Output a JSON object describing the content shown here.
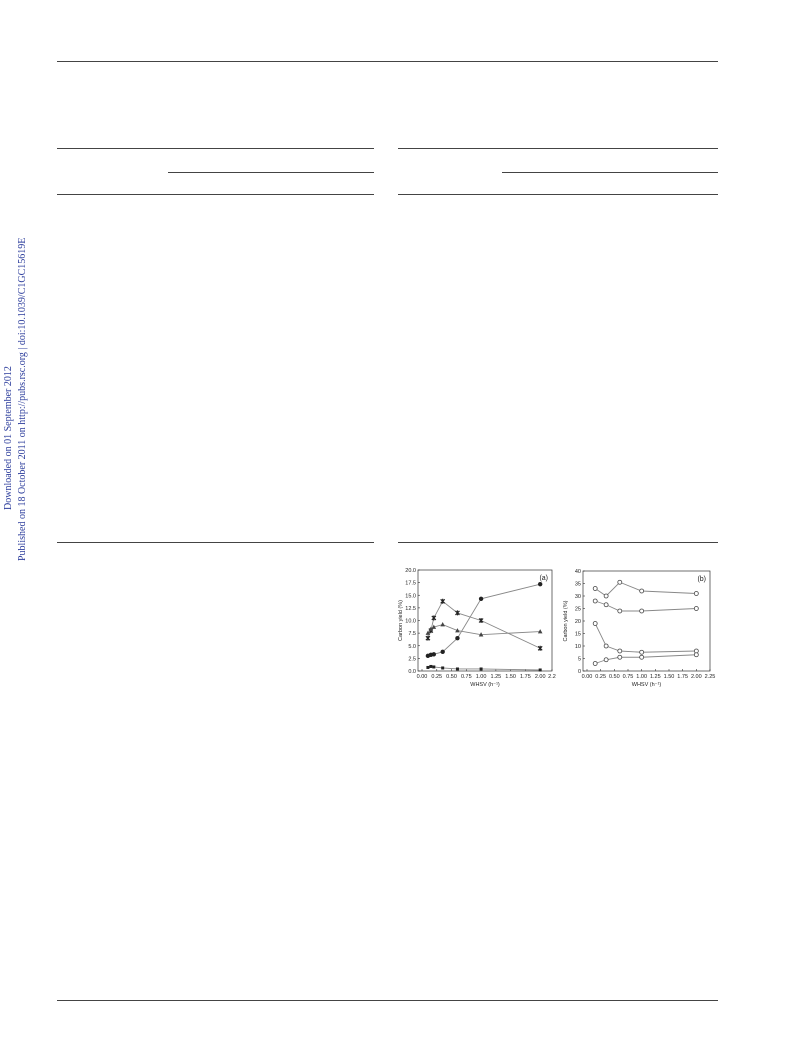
{
  "sidebar": {
    "downloaded": "Downloaded on 01 September 2012",
    "published": "Published on 18 October 2011 on http://pubs.rsc.org | doi:10.1039/C1GC15619E"
  },
  "chart_data": [
    {
      "type": "line",
      "panel_label": "(a)",
      "x_label": "WHSV (h⁻¹)",
      "y_label": "Carbon yield (%)",
      "x": [
        0.1,
        0.15,
        0.2,
        0.35,
        0.6,
        1.0,
        2.0
      ],
      "xlim": [
        0,
        2.2
      ],
      "ylim": [
        0,
        20
      ],
      "xticks": [
        {
          "value": 0,
          "label": "0.00"
        },
        {
          "value": 0.25,
          "label": "0.25"
        },
        {
          "value": 0.5,
          "label": "0.50"
        },
        {
          "value": 0.75,
          "label": "0.75"
        },
        {
          "value": 1,
          "label": "1.00"
        },
        {
          "value": 1.25,
          "label": "1.25"
        },
        {
          "value": 1.5,
          "label": "1.50"
        },
        {
          "value": 1.75,
          "label": "1.75"
        },
        {
          "value": 2,
          "label": "2.00"
        },
        2.2
      ],
      "yticks": [
        {
          "value": 0,
          "label": "0.0"
        },
        2.5,
        {
          "value": 5,
          "label": "5.0"
        },
        7.5,
        {
          "value": 10,
          "label": "10.0"
        },
        12.5,
        {
          "value": 15,
          "label": "15.0"
        },
        17.5,
        {
          "value": 20,
          "label": "20.0"
        }
      ],
      "series": [
        {
          "marker": "circle",
          "color": "#222",
          "values": [
            3,
            3.2,
            3.3,
            3.8,
            6.5,
            14.3,
            17.2
          ]
        },
        {
          "marker": "star",
          "color": "#222",
          "values": [
            6.5,
            8,
            10.5,
            13.8,
            11.5,
            10,
            4.5
          ]
        },
        {
          "marker": "triangle",
          "color": "#444",
          "values": [
            7.5,
            8.3,
            8.7,
            9.2,
            8,
            7.2,
            7.8
          ]
        },
        {
          "marker": "square",
          "color": "#222",
          "values": [
            0.7,
            0.9,
            0.8,
            0.6,
            0.4,
            0.4,
            0.2
          ]
        }
      ]
    },
    {
      "type": "line",
      "panel_label": "(b)",
      "x_label": "WHSV (h⁻¹)",
      "y_label": "Carbon yield (%)",
      "x": [
        0.15,
        0.35,
        0.6,
        1.0,
        2.0
      ],
      "xlim": [
        0,
        2.25
      ],
      "ylim": [
        0,
        40
      ],
      "xticks": [
        {
          "value": 0,
          "label": "0.00"
        },
        {
          "value": 0.25,
          "label": "0.25"
        },
        {
          "value": 0.5,
          "label": "0.50"
        },
        {
          "value": 0.75,
          "label": "0.75"
        },
        {
          "value": 1,
          "label": "1.00"
        },
        {
          "value": 1.25,
          "label": "1.25"
        },
        {
          "value": 1.5,
          "label": "1.50"
        },
        {
          "value": 1.75,
          "label": "1.75"
        },
        {
          "value": 2,
          "label": "2.00"
        },
        {
          "value": 2.25,
          "label": "2.25"
        }
      ],
      "yticks": [
        0,
        5,
        10,
        15,
        20,
        25,
        30,
        35,
        40
      ],
      "series": [
        {
          "marker": "open-circle",
          "color": "#444",
          "values": [
            33,
            30,
            35.5,
            32,
            31
          ]
        },
        {
          "marker": "open-circle",
          "color": "#444",
          "values": [
            28,
            26.5,
            24,
            24,
            25
          ]
        },
        {
          "marker": "open-circle",
          "color": "#444",
          "values": [
            19,
            10,
            8,
            7.5,
            8
          ]
        },
        {
          "marker": "open-circle",
          "color": "#444",
          "values": [
            3,
            4.5,
            5.5,
            5.5,
            6.5
          ]
        }
      ]
    }
  ]
}
